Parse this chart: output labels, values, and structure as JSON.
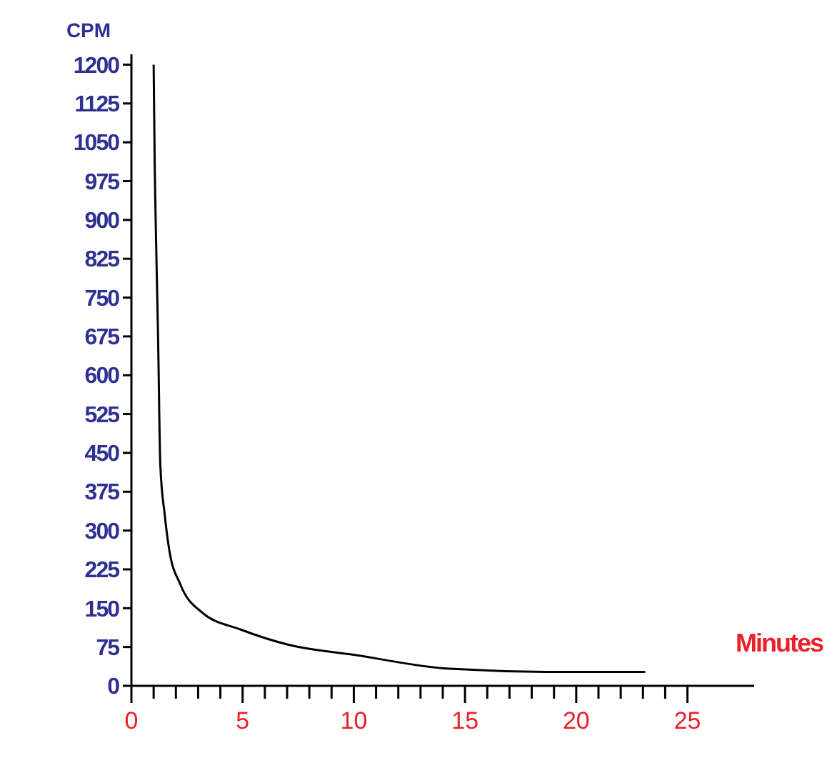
{
  "chart_data": {
    "type": "line",
    "ylabel": "CPM",
    "xlabel": "Minutes",
    "x": [
      1.0,
      1.05,
      1.1,
      1.2,
      1.3,
      1.5,
      1.7,
      2.2,
      3.2,
      4.9,
      7.1,
      10,
      14.3,
      19,
      23.1
    ],
    "series": [
      {
        "color": "#000000",
        "values": [
          1200,
          1000,
          880,
          671,
          427,
          330,
          263,
          196,
          141,
          109,
          79,
          60,
          33,
          27,
          27
        ]
      }
    ],
    "xlim": [
      0,
      28
    ],
    "ylim": [
      0,
      1220
    ],
    "xticks": [
      0,
      {
        "value": 1,
        "label": null
      },
      {
        "value": 2,
        "label": null
      },
      {
        "value": 3,
        "label": null
      },
      {
        "value": 4,
        "label": null
      },
      5,
      {
        "value": 6,
        "label": null
      },
      {
        "value": 7,
        "label": null
      },
      {
        "value": 8,
        "label": null
      },
      {
        "value": 9,
        "label": null
      },
      10,
      {
        "value": 11,
        "label": null
      },
      {
        "value": 12,
        "label": null
      },
      {
        "value": 13,
        "label": null
      },
      {
        "value": 14,
        "label": null
      },
      15,
      {
        "value": 16,
        "label": null
      },
      {
        "value": 17,
        "label": null
      },
      {
        "value": 18,
        "label": null
      },
      {
        "value": 19,
        "label": null
      },
      20,
      {
        "value": 21,
        "label": null
      },
      {
        "value": 22,
        "label": null
      },
      {
        "value": 23,
        "label": null
      },
      {
        "value": 24,
        "label": null
      },
      25
    ],
    "yticks": [
      0,
      75,
      150,
      225,
      300,
      375,
      450,
      525,
      600,
      675,
      750,
      825,
      900,
      975,
      1050,
      1125,
      1200
    ],
    "marker": "none",
    "line_style": "solid"
  }
}
